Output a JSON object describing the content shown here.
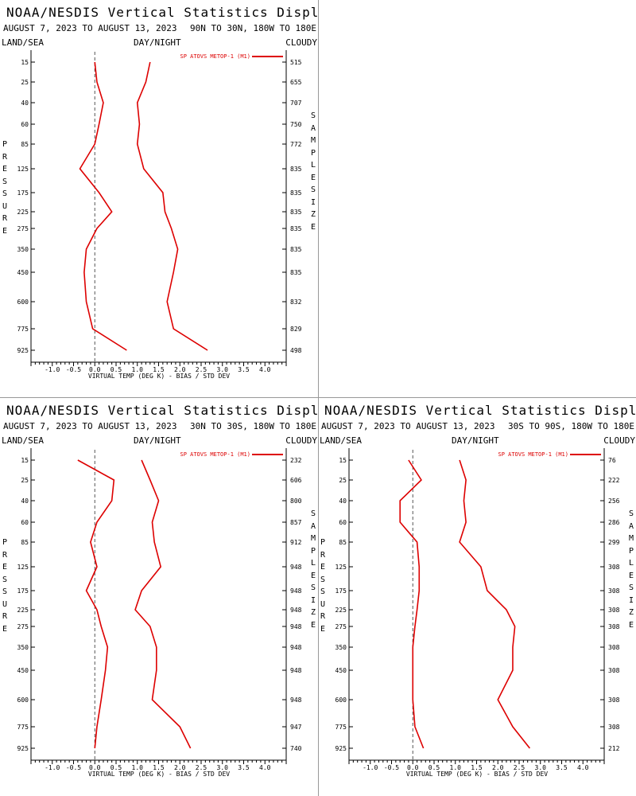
{
  "chart_data": [
    {
      "type": "line",
      "title": "NOAA/NESDIS Vertical Statistics Display",
      "date_range": "AUGUST 7, 2023 TO AUGUST 13, 2023",
      "region": "90N TO 30N, 180W TO 180E",
      "land_sea": "LAND/SEA",
      "day_night": "DAY/NIGHT",
      "cloud": "CLOUDY",
      "xlabel": "VIRTUAL TEMP (DEG K) - BIAS / STD DEV",
      "ylabel": "PRESSURE",
      "right_label": "SAMPLE SIZE",
      "legend": "SP ATOVS METOP-1 (M1)",
      "xlim": [
        -1.5,
        4.5
      ],
      "xticks": [
        "-1.0",
        "-0.5",
        "0.0",
        "0.5",
        "1.0",
        "1.5",
        "2.0",
        "2.5",
        "3.0",
        "3.5",
        "4.0"
      ],
      "pressure": [
        "15",
        "25",
        "40",
        "60",
        "85",
        "125",
        "175",
        "225",
        "275",
        "350",
        "450",
        "600",
        "775",
        "925"
      ],
      "sample_size": [
        "515",
        "655",
        "707",
        "750",
        "772",
        "835",
        "835",
        "835",
        "835",
        "835",
        "835",
        "832",
        "829",
        "498"
      ],
      "bias": [
        0.0,
        0.05,
        0.2,
        0.1,
        0.0,
        -0.35,
        0.1,
        0.4,
        0.05,
        -0.2,
        -0.25,
        -0.2,
        -0.05,
        0.75
      ],
      "std_dev": [
        1.3,
        1.2,
        1.0,
        1.05,
        1.0,
        1.15,
        1.6,
        1.65,
        1.8,
        1.95,
        1.85,
        1.7,
        1.85,
        2.65
      ]
    },
    {
      "type": "line",
      "title": "NOAA/NESDIS Vertical Statistics Display",
      "date_range": "AUGUST 7, 2023 TO AUGUST 13, 2023",
      "region": "30N TO 30S, 180W TO 180E",
      "land_sea": "LAND/SEA",
      "day_night": "DAY/NIGHT",
      "cloud": "CLOUDY",
      "xlabel": "VIRTUAL TEMP (DEG K) - BIAS / STD DEV",
      "ylabel": "PRESSURE",
      "right_label": "SAMPLE SIZE",
      "legend": "SP ATOVS METOP-1 (M1)",
      "xlim": [
        -1.5,
        4.5
      ],
      "xticks": [
        "-1.0",
        "-0.5",
        "0.0",
        "0.5",
        "1.0",
        "1.5",
        "2.0",
        "2.5",
        "3.0",
        "3.5",
        "4.0"
      ],
      "pressure": [
        "15",
        "25",
        "40",
        "60",
        "85",
        "125",
        "175",
        "225",
        "275",
        "350",
        "450",
        "600",
        "775",
        "925"
      ],
      "sample_size": [
        "232",
        "606",
        "800",
        "857",
        "912",
        "948",
        "948",
        "948",
        "948",
        "948",
        "948",
        "948",
        "947",
        "740"
      ],
      "bias": [
        -0.4,
        0.45,
        0.4,
        0.05,
        -0.1,
        0.05,
        -0.2,
        0.05,
        0.15,
        0.3,
        0.25,
        0.15,
        0.05,
        0.0
      ],
      "std_dev": [
        1.1,
        1.3,
        1.5,
        1.35,
        1.4,
        1.55,
        1.1,
        0.95,
        1.3,
        1.45,
        1.45,
        1.35,
        2.0,
        2.25
      ]
    },
    {
      "type": "line",
      "title": "NOAA/NESDIS Vertical Statistics Display",
      "date_range": "AUGUST 7, 2023 TO AUGUST 13, 2023",
      "region": "30S TO 90S, 180W TO 180E",
      "land_sea": "LAND/SEA",
      "day_night": "DAY/NIGHT",
      "cloud": "CLOUDY",
      "xlabel": "VIRTUAL TEMP (DEG K) - BIAS / STD DEV",
      "ylabel": "PRESSURE",
      "right_label": "SAMPLE SIZE",
      "legend": "SP ATOVS METOP-1 (M1)",
      "xlim": [
        -1.5,
        4.5
      ],
      "xticks": [
        "-1.0",
        "-0.5",
        "0.0",
        "0.5",
        "1.0",
        "1.5",
        "2.0",
        "2.5",
        "3.0",
        "3.5",
        "4.0"
      ],
      "pressure": [
        "15",
        "25",
        "40",
        "60",
        "85",
        "125",
        "175",
        "225",
        "275",
        "350",
        "450",
        "600",
        "775",
        "925"
      ],
      "sample_size": [
        "76",
        "222",
        "256",
        "286",
        "299",
        "308",
        "308",
        "308",
        "308",
        "308",
        "308",
        "308",
        "308",
        "212"
      ],
      "bias": [
        -0.1,
        0.2,
        -0.3,
        -0.3,
        0.1,
        0.15,
        0.15,
        0.1,
        0.05,
        0.0,
        0.0,
        0.0,
        0.05,
        0.25
      ],
      "std_dev": [
        1.1,
        1.25,
        1.2,
        1.25,
        1.1,
        1.6,
        1.75,
        2.2,
        2.4,
        2.35,
        2.35,
        2.0,
        2.35,
        2.75
      ]
    }
  ],
  "colors": {
    "series": "#dd0000",
    "axis": "#000000",
    "zero_line": "#555555"
  }
}
